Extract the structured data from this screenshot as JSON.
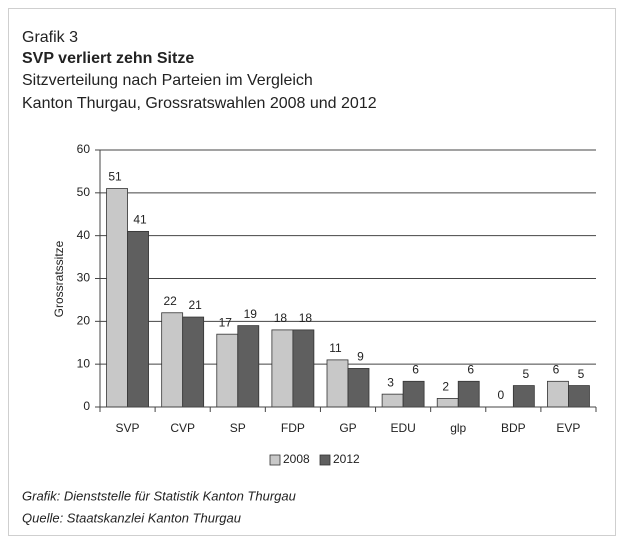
{
  "chart_data": {
    "type": "bar",
    "kicker": "Grafik 3",
    "title": "SVP verliert zehn Sitze",
    "subtitle": [
      "Sitzverteilung nach Parteien im Vergleich",
      "Kanton Thurgau, Grossratswahlen 2008 und 2012"
    ],
    "ylabel": "Grossratssitze",
    "categories": [
      "SVP",
      "CVP",
      "SP",
      "FDP",
      "GP",
      "EDU",
      "glp",
      "BDP",
      "EVP"
    ],
    "series": [
      {
        "name": "2008",
        "color": "#c8c8c8",
        "values": [
          51,
          22,
          17,
          18,
          11,
          3,
          2,
          0,
          6
        ]
      },
      {
        "name": "2012",
        "color": "#5f5f5f",
        "values": [
          41,
          21,
          19,
          18,
          9,
          6,
          6,
          5,
          5
        ]
      }
    ],
    "ylim": [
      0,
      60
    ],
    "yticks": [
      0,
      10,
      20,
      30,
      40,
      50,
      60
    ],
    "grid": true,
    "legend": "bottom",
    "footnotes": [
      "Grafik: Dienststelle für Statistik Kanton Thurgau",
      "Quelle: Staatskanzlei Kanton Thurgau"
    ]
  }
}
